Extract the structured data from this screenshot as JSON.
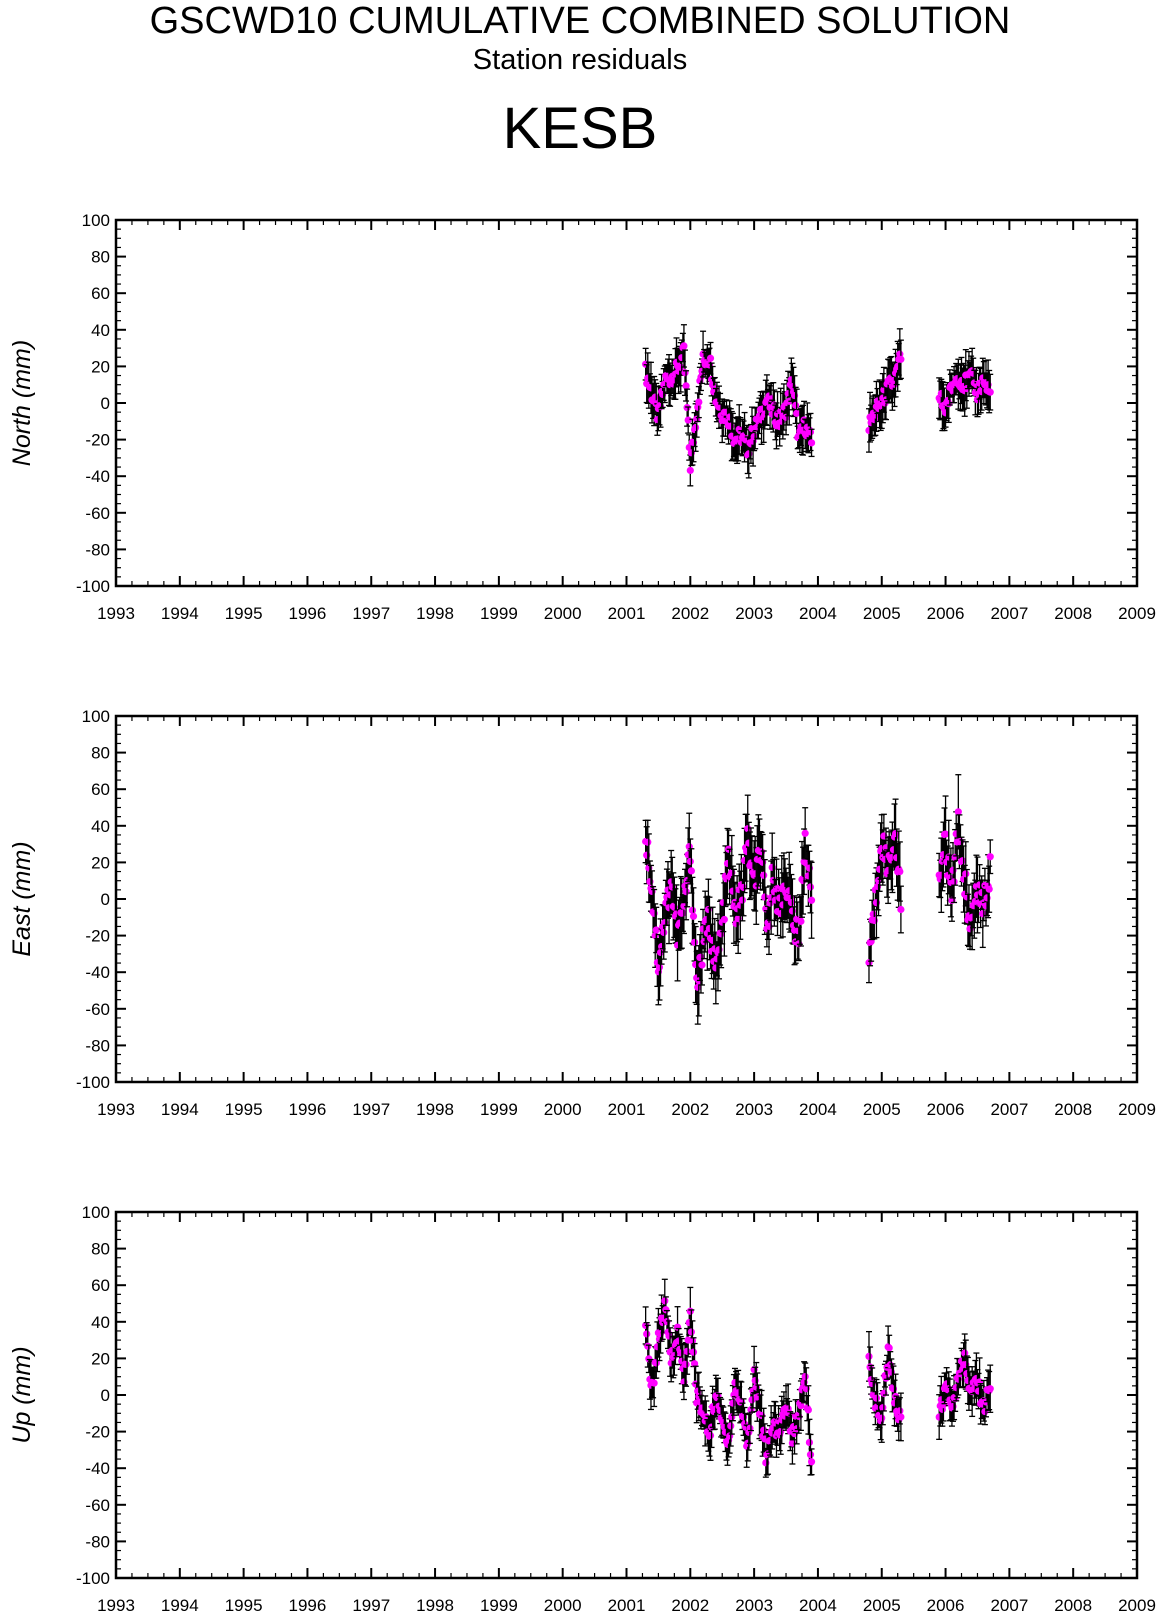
{
  "header": {
    "title": "GSCWD10 CUMULATIVE COMBINED SOLUTION",
    "subtitle": "Station residuals",
    "station": "KESB"
  },
  "colors": {
    "marker": "#ff00ff",
    "errorbar": "#000000",
    "axes": "#000000"
  },
  "chart_data": [
    {
      "type": "scatter",
      "ylabel": "North (mm)",
      "xlim": [
        1993,
        2009
      ],
      "ylim": [
        -100,
        100
      ],
      "xticks": [
        1993,
        1994,
        1995,
        1996,
        1997,
        1998,
        1999,
        2000,
        2001,
        2002,
        2003,
        2004,
        2005,
        2006,
        2007,
        2008,
        2009
      ],
      "yticks": [
        100,
        80,
        60,
        40,
        20,
        0,
        -20,
        -40,
        -60,
        -80,
        -100
      ],
      "segments": [
        {
          "start": 2001.3,
          "end": 2003.9,
          "points": [
            [
              2001.3,
              17
            ],
            [
              2001.4,
              5
            ],
            [
              2001.5,
              -8
            ],
            [
              2001.6,
              12
            ],
            [
              2001.7,
              14
            ],
            [
              2001.8,
              18
            ],
            [
              2001.9,
              27
            ],
            [
              2002.0,
              -34
            ],
            [
              2002.1,
              -5
            ],
            [
              2002.2,
              23
            ],
            [
              2002.3,
              25
            ],
            [
              2002.4,
              3
            ],
            [
              2002.5,
              -5
            ],
            [
              2002.6,
              -8
            ],
            [
              2002.7,
              -20
            ],
            [
              2002.8,
              -18
            ],
            [
              2002.9,
              -25
            ],
            [
              2003.0,
              -15
            ],
            [
              2003.1,
              -8
            ],
            [
              2003.2,
              2
            ],
            [
              2003.3,
              -5
            ],
            [
              2003.4,
              -10
            ],
            [
              2003.5,
              -3
            ],
            [
              2003.6,
              12
            ],
            [
              2003.7,
              -20
            ],
            [
              2003.8,
              -12
            ],
            [
              2003.9,
              -22
            ]
          ]
        },
        {
          "start": 2004.8,
          "end": 2005.3,
          "points": [
            [
              2004.8,
              -13
            ],
            [
              2004.9,
              -5
            ],
            [
              2005.0,
              0
            ],
            [
              2005.1,
              8
            ],
            [
              2005.2,
              12
            ],
            [
              2005.3,
              25
            ]
          ]
        },
        {
          "start": 2005.9,
          "end": 2006.7,
          "points": [
            [
              2005.9,
              3
            ],
            [
              2006.0,
              -3
            ],
            [
              2006.1,
              8
            ],
            [
              2006.2,
              15
            ],
            [
              2006.3,
              10
            ],
            [
              2006.4,
              14
            ],
            [
              2006.5,
              6
            ],
            [
              2006.6,
              12
            ],
            [
              2006.7,
              5
            ]
          ]
        }
      ]
    },
    {
      "type": "scatter",
      "ylabel": "East (mm)",
      "xlim": [
        1993,
        2009
      ],
      "ylim": [
        -100,
        100
      ],
      "xticks": [
        1993,
        1994,
        1995,
        1996,
        1997,
        1998,
        1999,
        2000,
        2001,
        2002,
        2003,
        2004,
        2005,
        2006,
        2007,
        2008,
        2009
      ],
      "yticks": [
        100,
        80,
        60,
        40,
        20,
        0,
        -20,
        -40,
        -60,
        -80,
        -100
      ],
      "segments": [
        {
          "start": 2001.3,
          "end": 2003.9,
          "points": [
            [
              2001.3,
              37
            ],
            [
              2001.4,
              5
            ],
            [
              2001.5,
              -36
            ],
            [
              2001.6,
              -10
            ],
            [
              2001.7,
              10
            ],
            [
              2001.8,
              -20
            ],
            [
              2001.9,
              -5
            ],
            [
              2002.0,
              28
            ],
            [
              2002.1,
              -48
            ],
            [
              2002.2,
              -25
            ],
            [
              2002.3,
              -10
            ],
            [
              2002.4,
              -40
            ],
            [
              2002.5,
              -15
            ],
            [
              2002.6,
              22
            ],
            [
              2002.7,
              -8
            ],
            [
              2002.8,
              0
            ],
            [
              2002.9,
              33
            ],
            [
              2003.0,
              5
            ],
            [
              2003.1,
              28
            ],
            [
              2003.2,
              -20
            ],
            [
              2003.3,
              15
            ],
            [
              2003.4,
              -5
            ],
            [
              2003.5,
              10
            ],
            [
              2003.6,
              -10
            ],
            [
              2003.7,
              -25
            ],
            [
              2003.8,
              35
            ],
            [
              2003.9,
              -5
            ]
          ]
        },
        {
          "start": 2004.8,
          "end": 2005.3,
          "points": [
            [
              2004.8,
              -32
            ],
            [
              2004.9,
              -2
            ],
            [
              2005.0,
              35
            ],
            [
              2005.1,
              15
            ],
            [
              2005.2,
              37
            ],
            [
              2005.3,
              3
            ]
          ]
        },
        {
          "start": 2005.9,
          "end": 2006.7,
          "points": [
            [
              2005.9,
              15
            ],
            [
              2006.0,
              30
            ],
            [
              2006.1,
              0
            ],
            [
              2006.2,
              42
            ],
            [
              2006.3,
              10
            ],
            [
              2006.4,
              -15
            ],
            [
              2006.5,
              8
            ],
            [
              2006.6,
              -5
            ],
            [
              2006.7,
              18
            ]
          ]
        }
      ]
    },
    {
      "type": "scatter",
      "ylabel": "Up (mm)",
      "xlim": [
        1993,
        2009
      ],
      "ylim": [
        -100,
        100
      ],
      "xticks": [
        1993,
        1994,
        1995,
        1996,
        1997,
        1998,
        1999,
        2000,
        2001,
        2002,
        2003,
        2004,
        2005,
        2006,
        2007,
        2008,
        2009
      ],
      "yticks": [
        100,
        80,
        60,
        40,
        20,
        0,
        -20,
        -40,
        -60,
        -80,
        -100
      ],
      "segments": [
        {
          "start": 2001.3,
          "end": 2003.9,
          "points": [
            [
              2001.3,
              35
            ],
            [
              2001.4,
              2
            ],
            [
              2001.5,
              30
            ],
            [
              2001.6,
              47
            ],
            [
              2001.7,
              20
            ],
            [
              2001.8,
              33
            ],
            [
              2001.9,
              10
            ],
            [
              2002.0,
              42
            ],
            [
              2002.1,
              0
            ],
            [
              2002.2,
              -10
            ],
            [
              2002.3,
              -22
            ],
            [
              2002.4,
              0
            ],
            [
              2002.5,
              -15
            ],
            [
              2002.6,
              -25
            ],
            [
              2002.7,
              5
            ],
            [
              2002.8,
              -5
            ],
            [
              2002.9,
              -28
            ],
            [
              2003.0,
              12
            ],
            [
              2003.1,
              -10
            ],
            [
              2003.2,
              -37
            ],
            [
              2003.3,
              -15
            ],
            [
              2003.4,
              -20
            ],
            [
              2003.5,
              -5
            ],
            [
              2003.6,
              -22
            ],
            [
              2003.7,
              -10
            ],
            [
              2003.8,
              13
            ],
            [
              2003.9,
              -38
            ]
          ]
        },
        {
          "start": 2004.8,
          "end": 2005.3,
          "points": [
            [
              2004.8,
              18
            ],
            [
              2004.9,
              -5
            ],
            [
              2005.0,
              -12
            ],
            [
              2005.1,
              26
            ],
            [
              2005.2,
              0
            ],
            [
              2005.3,
              -15
            ]
          ]
        },
        {
          "start": 2005.9,
          "end": 2006.7,
          "points": [
            [
              2005.9,
              -12
            ],
            [
              2006.0,
              5
            ],
            [
              2006.1,
              -5
            ],
            [
              2006.2,
              10
            ],
            [
              2006.3,
              22
            ],
            [
              2006.4,
              0
            ],
            [
              2006.5,
              8
            ],
            [
              2006.6,
              -8
            ],
            [
              2006.7,
              6
            ]
          ]
        }
      ]
    }
  ]
}
